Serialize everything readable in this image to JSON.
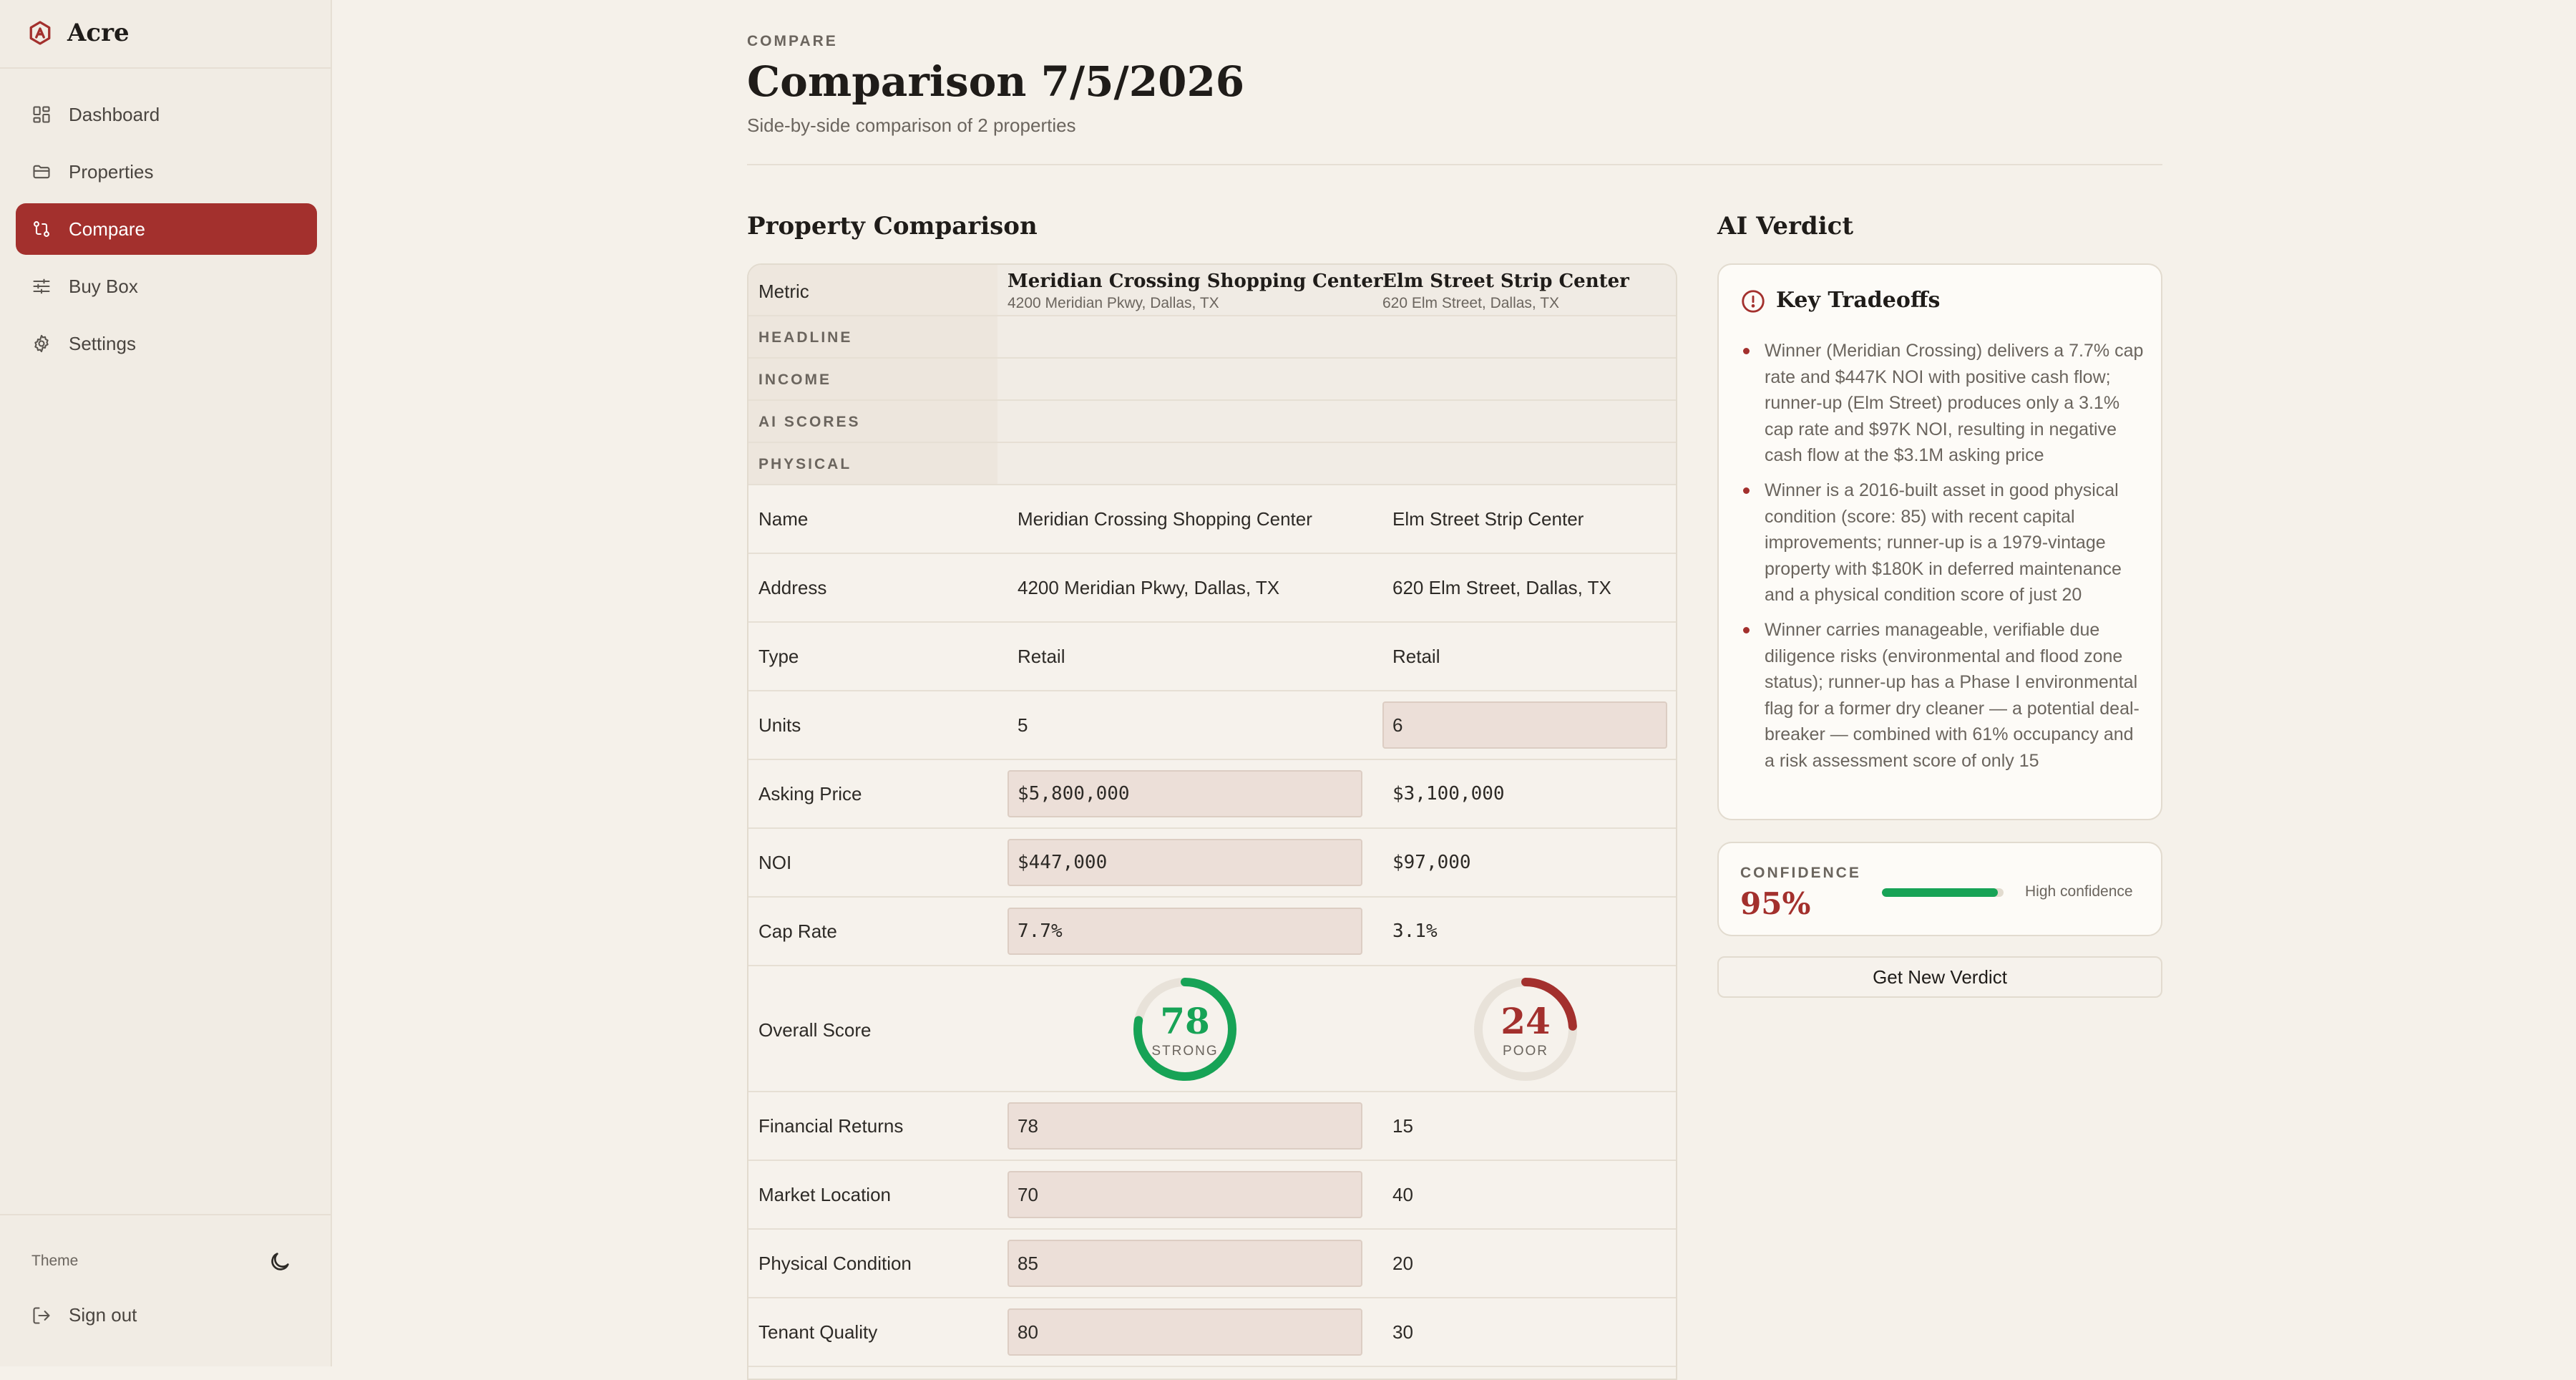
{
  "app": {
    "name": "Acre"
  },
  "sidebar": {
    "items": [
      {
        "label": "Dashboard",
        "icon": "grid-icon",
        "active": false
      },
      {
        "label": "Properties",
        "icon": "folder-icon",
        "active": false
      },
      {
        "label": "Compare",
        "icon": "compare-icon",
        "active": true
      },
      {
        "label": "Buy Box",
        "icon": "sliders-icon",
        "active": false
      },
      {
        "label": "Settings",
        "icon": "gear-icon",
        "active": false
      }
    ],
    "theme_label": "Theme",
    "sign_out_label": "Sign out"
  },
  "header": {
    "eyebrow": "COMPARE",
    "title": "Comparison 7/5/2026",
    "subtitle": "Side-by-side comparison of 2 properties"
  },
  "comparison": {
    "section_title": "Property Comparison",
    "metric_header": "Metric",
    "properties": [
      {
        "name": "Meridian Crossing Shopping Center",
        "address": "4200 Meridian Pkwy, Dallas, TX"
      },
      {
        "name": "Elm Street Strip Center",
        "address": "620 Elm Street, Dallas, TX"
      }
    ],
    "groups": [
      "HEADLINE",
      "INCOME",
      "AI SCORES",
      "PHYSICAL"
    ],
    "rows": {
      "name": {
        "label": "Name",
        "values": [
          "Meridian Crossing Shopping Center",
          "Elm Street Strip Center"
        ]
      },
      "address": {
        "label": "Address",
        "values": [
          "4200 Meridian Pkwy, Dallas, TX",
          "620 Elm Street, Dallas, TX"
        ]
      },
      "type": {
        "label": "Type",
        "values": [
          "Retail",
          "Retail"
        ]
      },
      "units": {
        "label": "Units",
        "values": [
          "5",
          "6"
        ]
      },
      "asking_price": {
        "label": "Asking Price",
        "values": [
          "$5,800,000",
          "$3,100,000"
        ]
      },
      "noi": {
        "label": "NOI",
        "values": [
          "$447,000",
          "$97,000"
        ]
      },
      "cap_rate": {
        "label": "Cap Rate",
        "values": [
          "7.7%",
          "3.1%"
        ]
      },
      "overall_score": {
        "label": "Overall Score",
        "values": [
          "78",
          "24"
        ],
        "ratings": [
          "STRONG",
          "POOR"
        ],
        "colors": [
          "#17a356",
          "#a3302d"
        ]
      },
      "financial_returns": {
        "label": "Financial Returns",
        "values": [
          "78",
          "15"
        ]
      },
      "market_location": {
        "label": "Market Location",
        "values": [
          "70",
          "40"
        ]
      },
      "physical_condition": {
        "label": "Physical Condition",
        "values": [
          "85",
          "20"
        ]
      },
      "tenant_quality": {
        "label": "Tenant Quality",
        "values": [
          "80",
          "30"
        ]
      }
    }
  },
  "verdict": {
    "section_title": "AI Verdict",
    "tradeoffs_title": "Key Tradeoffs",
    "tradeoffs": [
      "Winner (Meridian Crossing) delivers a 7.7% cap rate and $447K NOI with positive cash flow; runner-up (Elm Street) produces only a 3.1% cap rate and $97K NOI, resulting in negative cash flow at the $3.1M asking price",
      "Winner is a 2016-built asset in good physical condition (score: 85) with recent capital improvements; runner-up is a 1979-vintage property with $180K in deferred maintenance and a physical condition score of just 20",
      "Winner carries manageable, verifiable due diligence risks (environmental and flood zone status); runner-up has a Phase I environmental flag for a former dry cleaner — a potential deal-breaker — combined with 61% occupancy and a risk assessment score of only 15"
    ],
    "confidence_label": "CONFIDENCE",
    "confidence_value": "95%",
    "confidence_fraction": 0.95,
    "confidence_text": "High confidence",
    "button_label": "Get New Verdict"
  },
  "colors": {
    "accent": "#a3302d",
    "success": "#17a356",
    "background": "#f5f1ea"
  }
}
